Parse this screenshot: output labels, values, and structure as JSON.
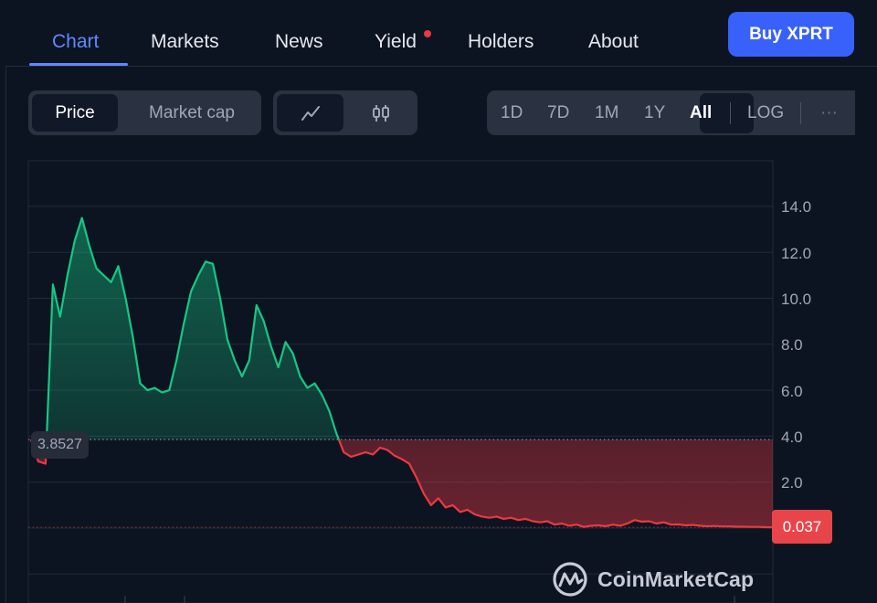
{
  "nav": {
    "tabs": [
      {
        "label": "Chart",
        "active": true
      },
      {
        "label": "Markets"
      },
      {
        "label": "News"
      },
      {
        "label": "Yield",
        "has_notification_dot": true
      },
      {
        "label": "Holders"
      },
      {
        "label": "About"
      }
    ],
    "buy_label": "Buy XPRT"
  },
  "toolbar": {
    "metric": {
      "options": [
        "Price",
        "Market cap"
      ],
      "selected": "Price"
    },
    "chart_style": {
      "options": [
        "line-chart-icon",
        "candlestick-icon"
      ],
      "selected": "line-chart-icon"
    },
    "ranges": [
      "1D",
      "7D",
      "1M",
      "1Y",
      "All"
    ],
    "selected_range": "All",
    "log_label": "LOG",
    "more_label": "···"
  },
  "chart": {
    "reference_price": "3.8527",
    "current_price": "0.037",
    "watermark": "CoinMarketCap",
    "colors": {
      "up": "#16c784",
      "down": "#ea3943",
      "accent": "#3861fb"
    }
  },
  "chart_data": {
    "type": "area",
    "title": "",
    "xlabel": "",
    "ylabel": "",
    "ylim": [
      -4.0,
      16.0
    ],
    "y_ticks": [
      "14.0",
      "12.0",
      "10.0",
      "8.0",
      "6.0",
      "4.0",
      "2.0"
    ],
    "baseline": 3.8527,
    "series": [
      {
        "values": [
          3.85,
          2.9,
          2.8,
          10.6,
          9.2,
          11.0,
          12.5,
          13.5,
          12.3,
          11.3,
          11.0,
          10.7,
          11.4,
          10.0,
          8.3,
          6.3,
          6.0,
          6.1,
          5.9,
          6.0,
          7.3,
          8.9,
          10.3,
          11.0,
          11.6,
          11.5,
          10.0,
          8.2,
          7.3,
          6.6,
          7.3,
          9.7,
          9.0,
          7.9,
          7.0,
          8.1,
          7.6,
          6.6,
          6.1,
          6.3,
          5.8,
          5.1,
          4.1,
          3.3,
          3.1,
          3.2,
          3.3,
          3.2,
          3.5,
          3.4,
          3.15,
          3.0,
          2.8,
          2.2,
          1.5,
          1.0,
          1.3,
          0.9,
          1.0,
          0.7,
          0.8,
          0.6,
          0.5,
          0.45,
          0.5,
          0.4,
          0.45,
          0.35,
          0.4,
          0.3,
          0.25,
          0.3,
          0.15,
          0.2,
          0.1,
          0.15,
          0.05,
          0.1,
          0.12,
          0.08,
          0.15,
          0.1,
          0.2,
          0.35,
          0.28,
          0.3,
          0.2,
          0.25,
          0.15,
          0.16,
          0.12,
          0.14,
          0.1,
          0.08,
          0.09,
          0.07,
          0.07,
          0.06,
          0.06,
          0.05,
          0.05,
          0.04,
          0.037
        ]
      }
    ]
  }
}
